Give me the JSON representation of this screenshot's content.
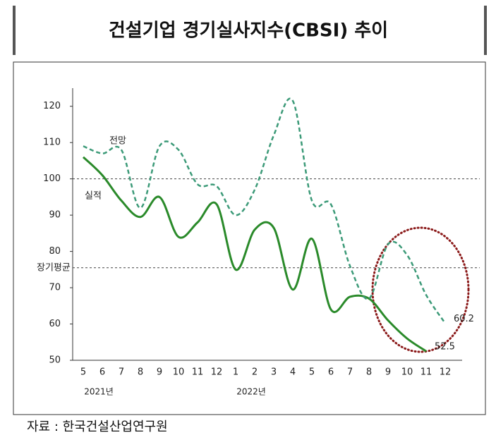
{
  "chart_data": {
    "type": "line",
    "title": "건설기업 경기실사지수(CBSI) 추이",
    "source": "자료 : 한국건설산업연구원",
    "categories": [
      "5",
      "6",
      "7",
      "8",
      "9",
      "10",
      "11",
      "12",
      "1",
      "2",
      "3",
      "4",
      "5",
      "6",
      "7",
      "8",
      "9",
      "10",
      "11",
      "12"
    ],
    "year_labels": [
      {
        "index": 0,
        "label": "2021년"
      },
      {
        "index": 8,
        "label": "2022년"
      }
    ],
    "series": [
      {
        "name": "실적",
        "color": "#2a8a2a",
        "dashed": false,
        "values": [
          106,
          101,
          94,
          89.5,
          95,
          84,
          88,
          93,
          75,
          86,
          86.5,
          69.5,
          83.5,
          64,
          67.5,
          67,
          61,
          56,
          52.5,
          null
        ],
        "value_labels": [
          null,
          null,
          null,
          null,
          null,
          null,
          null,
          null,
          null,
          null,
          null,
          null,
          null,
          null,
          null,
          null,
          null,
          null,
          "52.5",
          null
        ]
      },
      {
        "name": "전망",
        "color": "#3c9a78",
        "dashed": true,
        "values": [
          109,
          107,
          108,
          92,
          109,
          108,
          98.5,
          98,
          90,
          97,
          112,
          121.5,
          94,
          93,
          76,
          67,
          82,
          79,
          68,
          60.2
        ],
        "value_labels": [
          null,
          null,
          null,
          null,
          null,
          null,
          null,
          null,
          null,
          null,
          null,
          null,
          null,
          null,
          null,
          null,
          null,
          null,
          null,
          "60.2"
        ]
      }
    ],
    "reference_lines": [
      {
        "value": 100
      },
      {
        "value": 75.5,
        "label": "장기평균"
      }
    ],
    "ylim": [
      50,
      125
    ],
    "yticks": [
      50,
      60,
      70,
      80,
      90,
      100,
      110,
      120
    ]
  }
}
